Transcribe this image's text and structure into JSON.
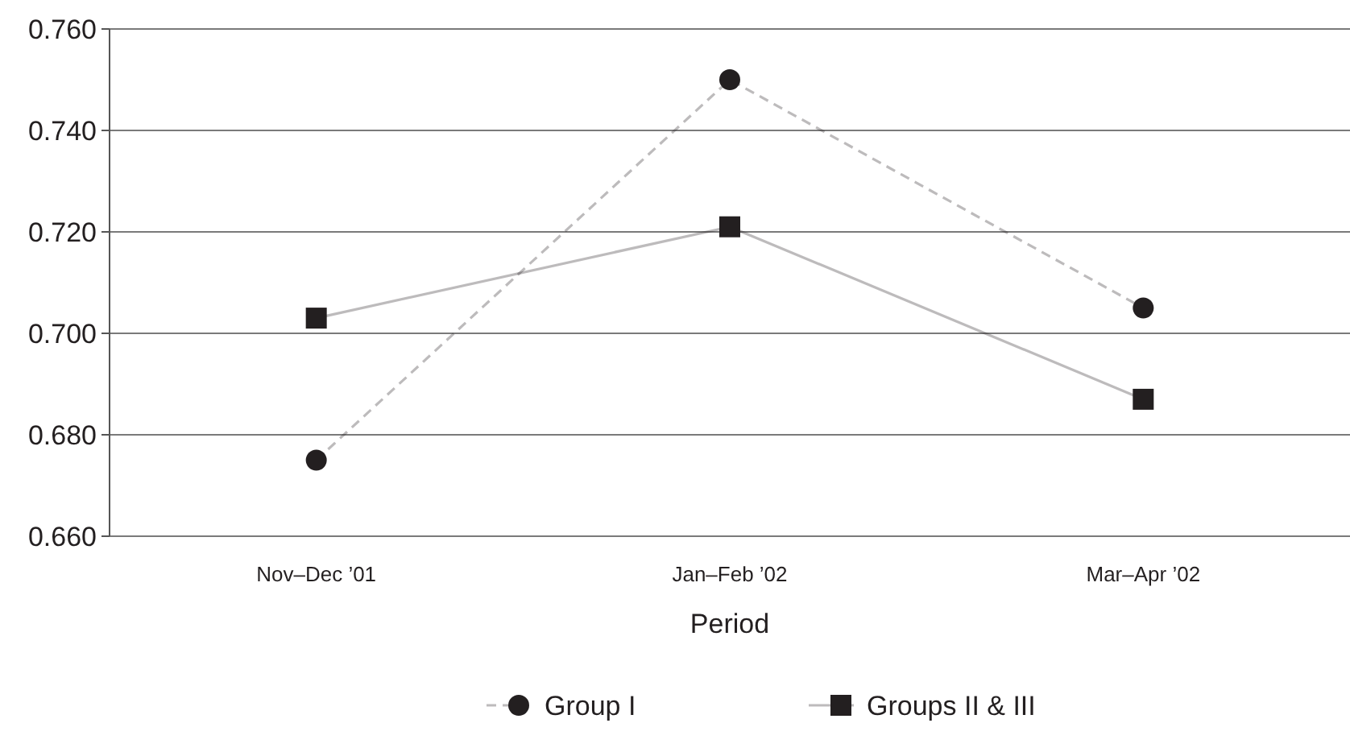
{
  "chart_data": {
    "type": "line",
    "xlabel": "Period",
    "categories": [
      "Nov–Dec ’01",
      "Jan–Feb ’02",
      "Mar–Apr ’02"
    ],
    "series": [
      {
        "name": "Group I",
        "color": "#231f20",
        "values": [
          0.675,
          0.75,
          0.705
        ],
        "marker": "circle",
        "line_style": "dashed"
      },
      {
        "name": "Groups II & III",
        "color": "#231f20",
        "values": [
          0.703,
          0.721,
          0.687
        ],
        "marker": "square",
        "line_style": "solid"
      }
    ],
    "ylim": [
      0.66,
      0.76
    ],
    "yticks": [
      {
        "value": 0.66,
        "label": "0.660"
      },
      {
        "value": 0.68,
        "label": "0.680"
      },
      {
        "value": 0.7,
        "label": "0.700"
      },
      {
        "value": 0.72,
        "label": "0.720"
      },
      {
        "value": 0.74,
        "label": "0.740"
      },
      {
        "value": 0.76,
        "label": "0.760"
      }
    ],
    "grid": "y",
    "legend": "bottom"
  }
}
